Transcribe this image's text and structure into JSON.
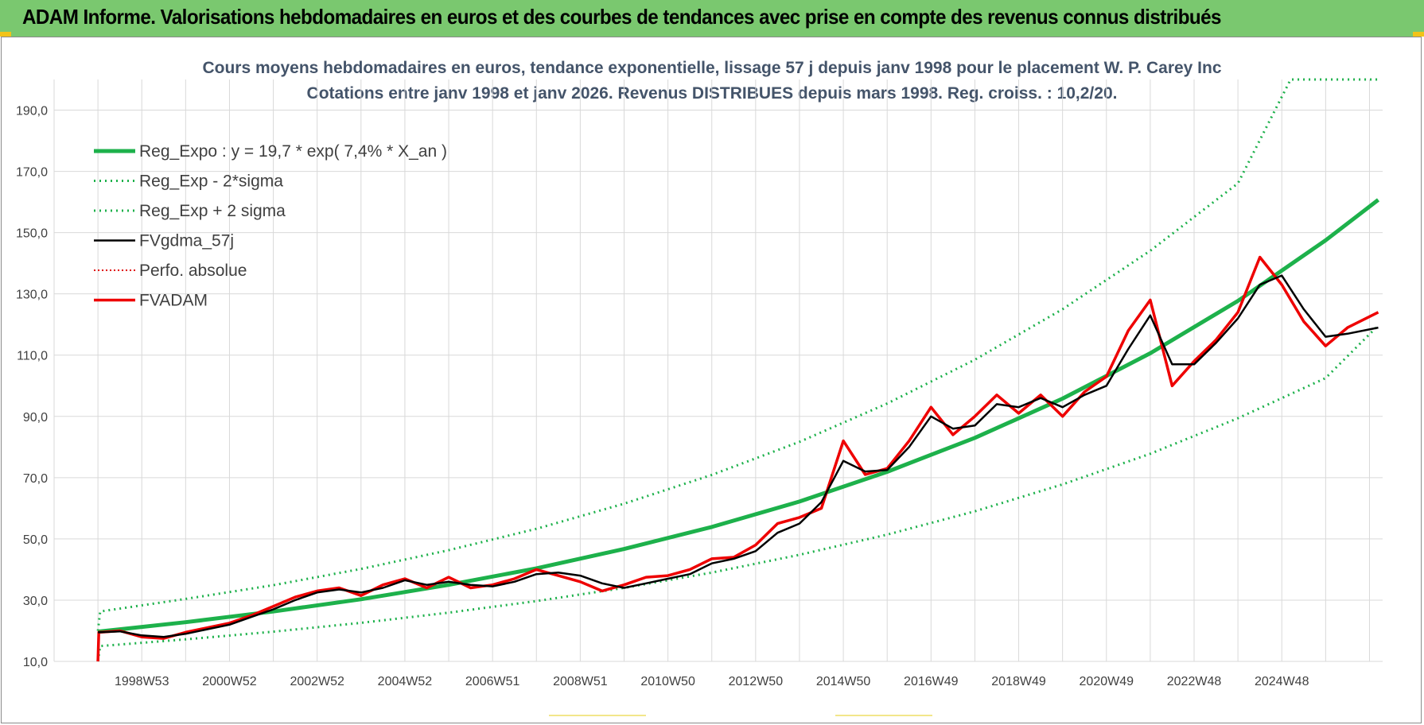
{
  "header": {
    "title": "ADAM Informe. Valorisations hebdomadaires en euros et des courbes de tendances avec prise en compte des revenus connus distribués"
  },
  "colors": {
    "banner": "#7ac86f",
    "reg_expo": "#1db14b",
    "band": "#1db14b",
    "fvgdma": "#000000",
    "perfo": "#e00000",
    "fvadam": "#ee0000",
    "grid": "#d9d9d9"
  },
  "chart_data": {
    "type": "line",
    "title": "Cours moyens hebdomadaires en euros, tendance exponentielle, lissage 57 j depuis janv 1998 pour le placement W. P. Carey Inc",
    "subtitle": "Cotations entre janv 1998 et janv 2026. Revenus DISTRIBUES depuis mars 1998. Reg. croiss. : 10,2/20.",
    "xlabel": "",
    "ylabel": "",
    "ylim": [
      10,
      200
    ],
    "xlim": [
      1996.0,
      2026.3
    ],
    "grid": true,
    "legend_position": "top-left",
    "y_ticks": [
      "10,0",
      "30,0",
      "50,0",
      "70,0",
      "90,0",
      "110,0",
      "130,0",
      "150,0",
      "170,0",
      "190,0"
    ],
    "y_tick_values": [
      10,
      30,
      50,
      70,
      90,
      110,
      130,
      150,
      170,
      190
    ],
    "x_ticks": [
      "1998W53",
      "2000W52",
      "2002W52",
      "2004W52",
      "2006W51",
      "2008W51",
      "2010W50",
      "2012W50",
      "2014W50",
      "2016W49",
      "2018W49",
      "2020W49",
      "2022W48",
      "2024W48"
    ],
    "x_tick_values": [
      1998.0,
      2000.0,
      2002.0,
      2004.0,
      2006.0,
      2008.0,
      2010.0,
      2012.0,
      2014.0,
      2016.0,
      2018.0,
      2020.0,
      2022.0,
      2024.0
    ],
    "series": [
      {
        "name": "Reg_Expo : y = 19,7 * exp( 7,4% *  X_an )",
        "style": "solid-thick",
        "x": [
          1997.0,
          1999.0,
          2001.0,
          2003.0,
          2005.0,
          2007.0,
          2009.0,
          2011.0,
          2013.0,
          2015.0,
          2017.0,
          2019.0,
          2021.0,
          2023.0,
          2025.0,
          2026.2
        ],
        "y": [
          19.7,
          22.8,
          26.3,
          30.3,
          35.0,
          40.4,
          46.7,
          53.9,
          62.2,
          71.9,
          83.0,
          95.8,
          110.6,
          127.7,
          147.5,
          160.7
        ]
      },
      {
        "name": "Reg_Exp - 2*sigma",
        "style": "dotted",
        "x": [
          1997.0,
          1997.05,
          1999.0,
          2001.0,
          2003.0,
          2005.0,
          2007.0,
          2009.0,
          2011.0,
          2013.0,
          2015.0,
          2017.0,
          2019.0,
          2021.0,
          2023.0,
          2025.0,
          2026.2
        ],
        "y": [
          10.0,
          15.0,
          17.2,
          19.7,
          22.6,
          25.9,
          29.7,
          34.0,
          39.0,
          44.8,
          51.4,
          59.0,
          67.8,
          77.8,
          89.4,
          102.5,
          119.7
        ]
      },
      {
        "name": "Reg_Exp + 2 sigma",
        "style": "dotted",
        "x": [
          1997.0,
          1997.05,
          1999.0,
          2001.0,
          2003.0,
          2005.0,
          2007.0,
          2009.0,
          2011.0,
          2013.0,
          2015.0,
          2017.0,
          2019.0,
          2021.0,
          2023.0,
          2024.2,
          2026.2
        ],
        "y": [
          20.0,
          26.3,
          30.4,
          34.9,
          40.2,
          46.3,
          53.3,
          61.5,
          70.9,
          81.7,
          94.2,
          108.5,
          125.0,
          144.1,
          166.1,
          200.0,
          200.0
        ]
      },
      {
        "name": "FVgdma_57j",
        "style": "solid-thin",
        "x": [
          1997.0,
          1997.5,
          1998.0,
          1998.5,
          1999.0,
          1999.5,
          2000.0,
          2000.5,
          2001.0,
          2001.5,
          2002.0,
          2002.5,
          2003.0,
          2003.5,
          2004.0,
          2004.5,
          2005.0,
          2005.5,
          2006.0,
          2006.5,
          2007.0,
          2007.5,
          2008.0,
          2008.5,
          2009.0,
          2009.5,
          2010.0,
          2010.5,
          2011.0,
          2011.5,
          2012.0,
          2012.5,
          2013.0,
          2013.5,
          2014.0,
          2014.5,
          2015.0,
          2015.5,
          2016.0,
          2016.5,
          2017.0,
          2017.5,
          2018.0,
          2018.5,
          2019.0,
          2019.5,
          2020.0,
          2020.5,
          2021.0,
          2021.5,
          2022.0,
          2022.5,
          2023.0,
          2023.5,
          2024.0,
          2024.5,
          2025.0,
          2025.5,
          2026.2
        ],
        "y": [
          19.5,
          19.8,
          18.5,
          18.0,
          19.0,
          20.5,
          22.0,
          24.5,
          27.0,
          30.0,
          32.5,
          33.5,
          32.5,
          34.0,
          36.5,
          35.0,
          36.0,
          35.0,
          34.5,
          36.0,
          38.5,
          39.0,
          38.0,
          35.5,
          34.0,
          35.5,
          37.0,
          38.5,
          42.0,
          43.5,
          46.0,
          52.0,
          55.0,
          62.0,
          75.5,
          72.0,
          72.5,
          80.0,
          90.0,
          86.0,
          87.0,
          94.0,
          93.0,
          96.0,
          93.0,
          97.0,
          100.0,
          112.0,
          123.0,
          107.0,
          107.0,
          114.0,
          122.0,
          133.0,
          136.0,
          125.0,
          116.0,
          117.0,
          119.0
        ]
      },
      {
        "name": "Perfo. absolue",
        "style": "dotted",
        "x": [
          1997.0,
          2000.0,
          2005.0,
          2010.0,
          2015.0,
          2020.0,
          2026.2
        ],
        "y": [
          19.5,
          22.0,
          36.0,
          37.0,
          72.5,
          100.0,
          125.0
        ]
      },
      {
        "name": "FVADAM",
        "style": "solid-thick",
        "x": [
          1997.0,
          1997.02,
          1997.5,
          1998.0,
          1998.5,
          1999.0,
          1999.5,
          2000.0,
          2000.5,
          2001.0,
          2001.5,
          2002.0,
          2002.5,
          2003.0,
          2003.5,
          2004.0,
          2004.5,
          2005.0,
          2005.5,
          2006.0,
          2006.5,
          2007.0,
          2007.5,
          2008.0,
          2008.5,
          2009.0,
          2009.5,
          2010.0,
          2010.5,
          2011.0,
          2011.5,
          2012.0,
          2012.5,
          2013.0,
          2013.5,
          2014.0,
          2014.5,
          2015.0,
          2015.5,
          2016.0,
          2016.5,
          2017.0,
          2017.5,
          2018.0,
          2018.5,
          2019.0,
          2019.5,
          2020.0,
          2020.5,
          2021.0,
          2021.5,
          2022.0,
          2022.5,
          2023.0,
          2023.5,
          2024.0,
          2024.5,
          2025.0,
          2025.5,
          2026.2
        ],
        "y": [
          10.0,
          19.5,
          20.0,
          18.0,
          17.5,
          19.5,
          21.0,
          22.5,
          25.0,
          28.0,
          31.0,
          33.0,
          34.0,
          31.5,
          35.0,
          37.0,
          34.0,
          37.5,
          34.0,
          35.0,
          37.0,
          40.0,
          38.0,
          36.0,
          33.0,
          35.0,
          37.5,
          38.0,
          40.0,
          43.5,
          44.0,
          48.0,
          55.0,
          57.0,
          60.0,
          82.0,
          71.0,
          73.0,
          82.0,
          93.0,
          84.0,
          90.0,
          97.0,
          91.0,
          97.0,
          90.0,
          98.0,
          103.0,
          118.0,
          128.0,
          100.0,
          108.0,
          115.0,
          124.0,
          142.0,
          133.0,
          121.0,
          113.0,
          119.0,
          124.0
        ]
      }
    ]
  }
}
